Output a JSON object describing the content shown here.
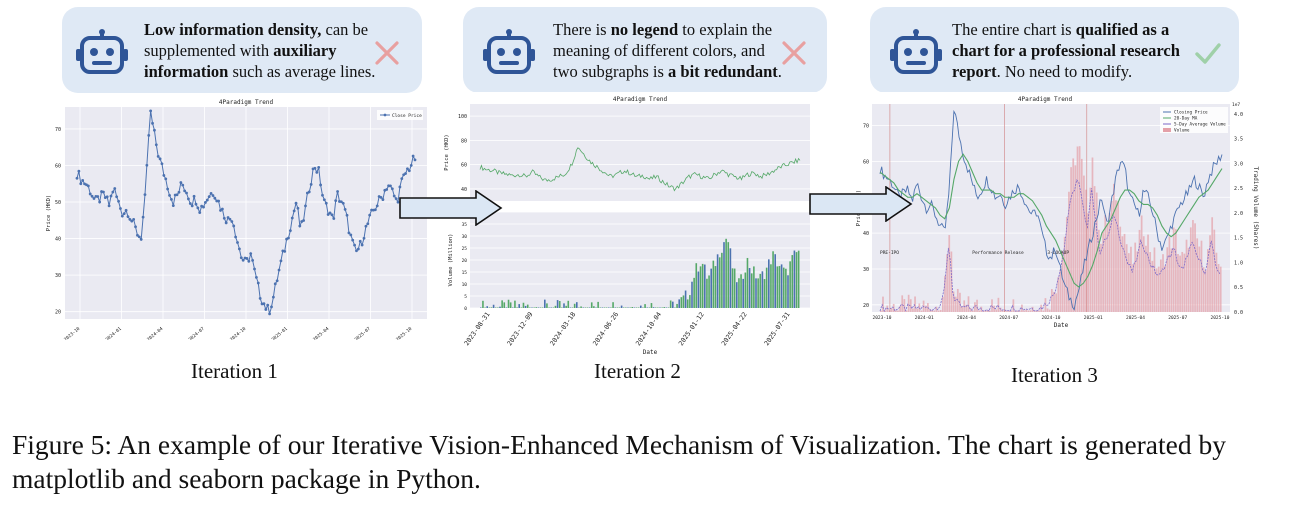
{
  "bubbles": [
    {
      "parts": [
        {
          "t": "Low information density,",
          "b": true
        },
        {
          "t": " can be supplemented with ",
          "b": false
        },
        {
          "t": "auxiliary information",
          "b": true
        },
        {
          "t": " such as average lines.",
          "b": false
        }
      ],
      "verdict": "cross-icon"
    },
    {
      "parts": [
        {
          "t": "There is ",
          "b": false
        },
        {
          "t": "no legend",
          "b": true
        },
        {
          "t": " to explain the meaning of different colors, and two subgraphs is ",
          "b": false
        },
        {
          "t": "a bit redundant",
          "b": true
        },
        {
          "t": ".",
          "b": false
        }
      ],
      "verdict": "cross-icon"
    },
    {
      "parts": [
        {
          "t": "The entire chart is ",
          "b": false
        },
        {
          "t": "qualified as a chart for a professional research report",
          "b": true
        },
        {
          "t": ". No need to modify.",
          "b": false
        }
      ],
      "verdict": "check-icon"
    }
  ],
  "iterations": {
    "one": "Iteration 1",
    "two": "Iteration 2",
    "three": "Iteration 3"
  },
  "figure_caption": "Figure 5: An example of our Iterative Vision-Enhanced Mechanism of Visualization. The chart is generated by matplotlib and seaborn package in Python.",
  "colors": {
    "bubble_bg": "#dfe9f5",
    "robot": "#2f5597",
    "cross": "#e8a0a0",
    "check": "#9fd0a8",
    "plot_bg": "#eaeaf2",
    "price_blue": "#4c72b0",
    "volume_green": "#55a868",
    "ma_green": "#55a868",
    "vol_red": "#e4a0a8"
  },
  "chart_data": [
    {
      "type": "line",
      "title": "4Paradigm Trend",
      "xlabel": "Date",
      "ylabel": "Price (HKD)",
      "legend": [
        "Close Price"
      ],
      "legend_position": "top-right",
      "x_ticks": [
        "2023-10",
        "2024-01",
        "2024-04",
        "2024-07",
        "2024-10",
        "2025-01",
        "2025-04",
        "2025-07",
        "2025-10"
      ],
      "y_ticks": [
        20,
        30,
        40,
        50,
        60,
        70
      ],
      "ylim": [
        18,
        76
      ],
      "series": [
        {
          "name": "Close Price",
          "values": [
            58,
            56,
            55,
            53,
            50,
            51,
            52,
            49,
            54,
            50,
            47,
            48,
            45,
            42,
            40,
            52,
            75,
            68,
            62,
            58,
            54,
            50,
            52,
            55,
            53,
            50,
            51,
            48,
            50,
            52,
            53,
            50,
            47,
            45,
            46,
            40,
            35,
            33,
            36,
            30,
            25,
            22,
            20,
            24,
            30,
            35,
            40,
            45,
            50,
            42,
            48,
            55,
            60,
            58,
            50,
            48,
            45,
            52,
            50,
            46,
            40,
            36,
            38,
            42,
            45,
            48,
            50,
            52,
            55,
            53,
            50,
            55,
            58,
            60,
            62
          ]
        }
      ]
    },
    {
      "type": "line",
      "title": "4Paradigm Trend",
      "xlabel": "Date",
      "ylabel": "Price (HKD)",
      "x_ticks": [
        "2023-08-31",
        "2023-12-09",
        "2024-03-18",
        "2024-06-26",
        "2024-10-04",
        "2025-01-12",
        "2025-04-22",
        "2025-07-31"
      ],
      "price_y_ticks": [
        40,
        60,
        80,
        100
      ],
      "volume_ylabel": "Volume (Million)",
      "volume_y_ticks": [
        0,
        5,
        10,
        15,
        20,
        25,
        30,
        35,
        40
      ],
      "series": [
        {
          "name": "Price",
          "values": [
            58,
            56,
            55,
            53,
            52,
            51,
            52,
            50,
            54,
            50,
            47,
            48,
            50,
            52,
            60,
            75,
            68,
            62,
            58,
            54,
            50,
            52,
            55,
            53,
            50,
            51,
            48,
            50,
            46,
            42,
            40,
            45,
            50,
            52,
            50,
            48,
            52,
            55,
            52,
            50,
            48,
            52,
            53,
            50,
            52,
            55,
            58,
            60,
            62,
            64
          ]
        },
        {
          "name": "Volume",
          "values": [
            0.5,
            0.4,
            0.6,
            0.3,
            0.5,
            0.4,
            0.8,
            0.5,
            0.3,
            0.4,
            0.6,
            0.5,
            0.4,
            0.3,
            0.5,
            0.7,
            0.4,
            0.5,
            0.3,
            0.4,
            0.6,
            0.5,
            0.4,
            0.3,
            0.5,
            0.4,
            0.6,
            0.8,
            0.5,
            0.4,
            1,
            3,
            6,
            15,
            20,
            12,
            18,
            25,
            30,
            14,
            10,
            20,
            15,
            12,
            16,
            22,
            18,
            14,
            20,
            24
          ]
        }
      ]
    },
    {
      "type": "line",
      "title": "4Paradigm Trend",
      "xlabel": "Date",
      "ylabel": "Price (HKD)",
      "ylabel_right": "Trading Volume (Shares)",
      "right_axis_multiplier": "1e7",
      "legend": [
        "Closing Price",
        "20-Day MA",
        "5-Day Average Volume",
        "Volume"
      ],
      "legend_position": "top-right",
      "annotations": [
        "PRE-IPO",
        "Performance Release",
        "3-LOOKUP"
      ],
      "x_ticks": [
        "2023-10",
        "2024-01",
        "2024-04",
        "2024-07",
        "2024-10",
        "2025-01",
        "2025-04",
        "2025-07",
        "2025-10"
      ],
      "y_ticks": [
        20,
        30,
        40,
        50,
        60,
        70
      ],
      "right_ticks": [
        "0.0",
        "0.5",
        "1.0",
        "1.5",
        "2.0",
        "2.5",
        "3.0",
        "3.5",
        "4.0"
      ],
      "series": [
        {
          "name": "Closing Price",
          "values": [
            58,
            56,
            55,
            53,
            50,
            51,
            52,
            49,
            54,
            50,
            47,
            48,
            45,
            42,
            40,
            52,
            75,
            68,
            62,
            58,
            54,
            50,
            52,
            55,
            53,
            50,
            51,
            48,
            50,
            52,
            53,
            50,
            47,
            45,
            46,
            40,
            35,
            33,
            36,
            30,
            25,
            22,
            20,
            24,
            30,
            35,
            40,
            45,
            50,
            42,
            48,
            55,
            60,
            58,
            50,
            48,
            45,
            52,
            50,
            46,
            40,
            36,
            38,
            42,
            45,
            48,
            50,
            52,
            55,
            53,
            50,
            55,
            58,
            60,
            62
          ]
        },
        {
          "name": "20-Day MA",
          "values": [
            57,
            56,
            55,
            54,
            52,
            51,
            50,
            50,
            51,
            50,
            49,
            48,
            47,
            45,
            44,
            47,
            55,
            60,
            62,
            60,
            57,
            54,
            52,
            52,
            52,
            51,
            51,
            50,
            50,
            50,
            51,
            51,
            50,
            49,
            47,
            45,
            42,
            40,
            38,
            35,
            32,
            29,
            26,
            25,
            26,
            28,
            31,
            35,
            40,
            42,
            44,
            47,
            50,
            52,
            52,
            51,
            49,
            48,
            48,
            47,
            45,
            42,
            40,
            39,
            40,
            42,
            44,
            46,
            48,
            50,
            51,
            52,
            54,
            56,
            58
          ]
        },
        {
          "name": "Volume",
          "values": [
            0.1,
            0.1,
            0.1,
            0.1,
            0.1,
            0.1,
            0.1,
            0.1,
            0.1,
            0.1,
            0.1,
            0.1,
            0.1,
            0.2,
            0.5,
            1.8,
            0.3,
            0.2,
            0.1,
            0.1,
            0.1,
            0.1,
            0.1,
            0.1,
            0.1,
            0.1,
            0.1,
            0.1,
            0.1,
            0.1,
            0.1,
            0.1,
            0.1,
            0.1,
            0.1,
            0.1,
            0.2,
            0.3,
            0.5,
            1.0,
            1.5,
            2.5,
            3.0,
            3.4,
            2.8,
            2.0,
            3.2,
            2.2,
            1.5,
            1.8,
            2.0,
            2.5,
            2.0,
            1.6,
            1.2,
            1.0,
            1.4,
            1.8,
            1.5,
            1.2,
            1.0,
            0.9,
            1.2,
            1.4,
            1.6,
            1.2,
            1.0,
            1.5,
            1.7,
            1.4,
            1.2,
            1.0,
            1.8,
            1.2,
            1.0
          ]
        }
      ]
    }
  ]
}
